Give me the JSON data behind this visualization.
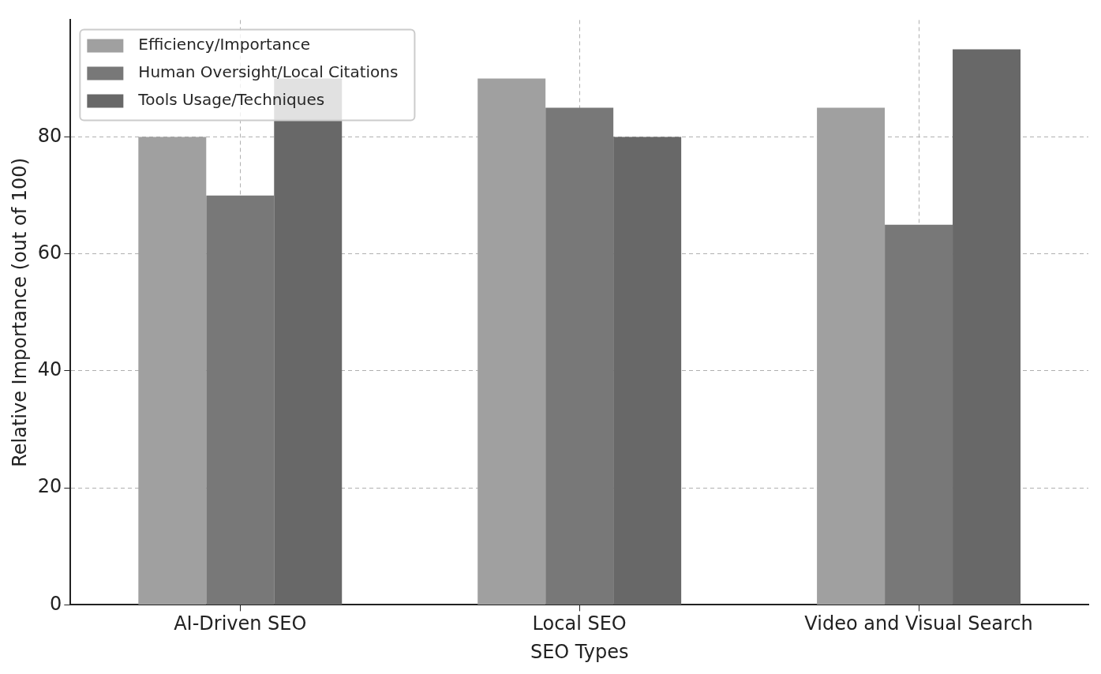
{
  "chart_data": {
    "type": "bar",
    "xlabel": "SEO Types",
    "ylabel": "Relative Importance (out of 100)",
    "categories": [
      "AI-Driven SEO",
      "Local SEO",
      "Video and Visual Search"
    ],
    "series": [
      {
        "name": "Efficiency/Importance",
        "color": "#a0a0a0",
        "values": [
          80,
          90,
          85
        ]
      },
      {
        "name": "Human Oversight/Local Citations",
        "color": "#787878",
        "values": [
          70,
          85,
          65
        ]
      },
      {
        "name": "Tools Usage/Techniques",
        "color": "#686868",
        "values": [
          90,
          80,
          95
        ]
      }
    ],
    "ylim": [
      0,
      100
    ],
    "yticks": [
      0,
      20,
      40,
      60,
      80
    ],
    "grid": true,
    "legend": "top left"
  }
}
